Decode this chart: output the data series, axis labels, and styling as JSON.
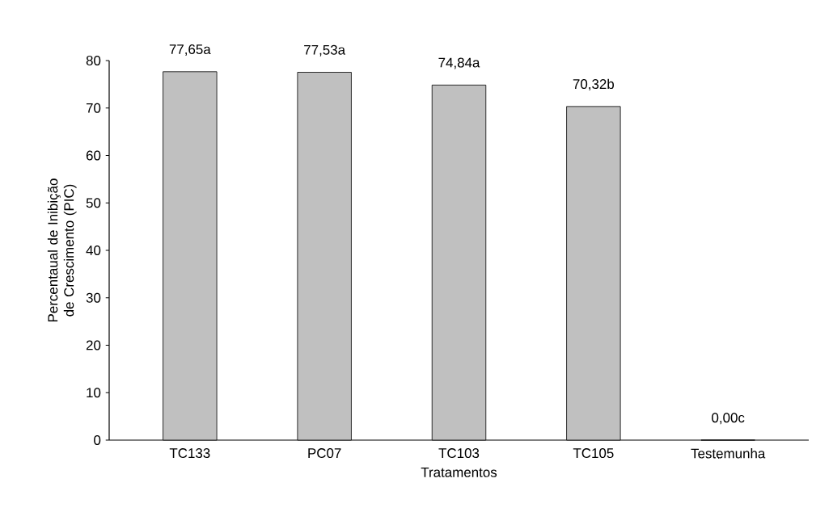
{
  "chart_data": {
    "type": "bar",
    "xlabel": "Tratamentos",
    "ylabel": "Percentaual de Inibição de Crescimento (PIC)",
    "categories": [
      "TC133",
      "PC07",
      "TC103",
      "TC105",
      "Testemunha"
    ],
    "values": [
      77.65,
      77.53,
      74.84,
      70.32,
      0
    ],
    "value_labels": [
      "77,65a",
      "77,53a",
      "74,84a",
      "70,32b",
      "0,00c"
    ],
    "color": "#c0c0c0",
    "ylim": [
      0,
      80
    ],
    "yticks": [
      0,
      10,
      20,
      30,
      40,
      50,
      60,
      70,
      80
    ]
  }
}
